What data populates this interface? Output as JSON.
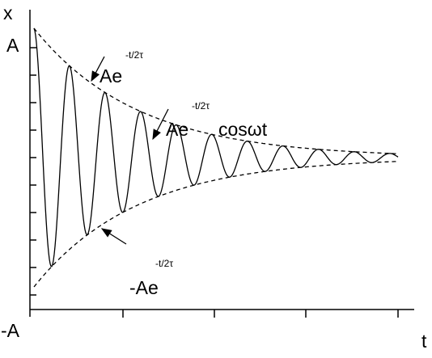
{
  "axes": {
    "y_label": "x",
    "x_label": "t",
    "y_top": "A",
    "y_bottom": "-A"
  },
  "annotations": {
    "upper_envelope": {
      "base": "Ae",
      "exponent": "-t/2τ"
    },
    "oscillation": {
      "base": "Ae",
      "exponent": "-t/2τ",
      "factor": "cosωt"
    },
    "lower_envelope": {
      "base": "-Ae",
      "exponent": "-t/2τ"
    }
  }
}
